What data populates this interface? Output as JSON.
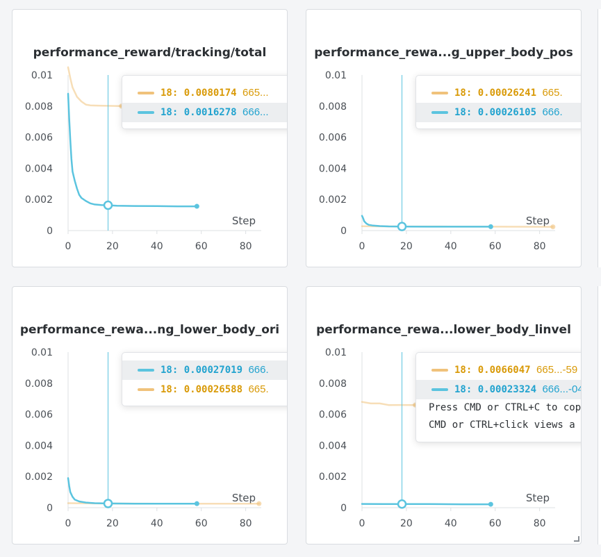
{
  "colors": {
    "blue": "#5bc4df",
    "blue_text": "#22a3cf",
    "orange": "#f0c27b",
    "orange_text": "#d99a08"
  },
  "x_axis_label": "Step",
  "chart_data": [
    {
      "type": "line",
      "title": "performance_reward/tracking/total",
      "xlabel": "Step",
      "xlim": [
        0,
        87
      ],
      "ylim": [
        0,
        0.01
      ],
      "x_ticks": [
        "0",
        "20",
        "40",
        "60",
        "80"
      ],
      "y_ticks": [
        "0",
        "0.002",
        "0.004",
        "0.006",
        "0.008",
        "0.01"
      ],
      "hover_step": 18,
      "series": [
        {
          "color": "#f0c27b",
          "faded": true,
          "x": [
            0,
            1,
            2,
            4,
            6,
            8,
            10,
            14,
            18,
            24
          ],
          "y": [
            0.0105,
            0.0098,
            0.0092,
            0.0086,
            0.0083,
            0.0081,
            0.00805,
            0.00803,
            0.0080174,
            0.008
          ]
        },
        {
          "color": "#5bc4df",
          "faded": false,
          "x": [
            0,
            0.5,
            1,
            1.5,
            2,
            3,
            4,
            5,
            6,
            8,
            10,
            12,
            15,
            18,
            22,
            30,
            40,
            50,
            58
          ],
          "y": [
            0.0088,
            0.0072,
            0.0058,
            0.0046,
            0.0038,
            0.0032,
            0.0027,
            0.0023,
            0.0021,
            0.0019,
            0.00175,
            0.00168,
            0.00164,
            0.0016278,
            0.0016,
            0.00158,
            0.00157,
            0.00156,
            0.00156
          ]
        }
      ],
      "tooltip": {
        "rows": [
          {
            "color": "#f0c27b",
            "text_color": "#d99a08",
            "step": "18:",
            "value": "0.0080174",
            "name": "665...",
            "highlight": false
          },
          {
            "color": "#5bc4df",
            "text_color": "#22a3cf",
            "step": "18:",
            "value": "0.0016278",
            "name": "666...",
            "highlight": true
          }
        ],
        "hints": []
      }
    },
    {
      "type": "line",
      "title": "performance_rewa...g_upper_body_pos",
      "xlabel": "Step",
      "xlim": [
        0,
        87
      ],
      "ylim": [
        0,
        0.01
      ],
      "x_ticks": [
        "0",
        "20",
        "40",
        "60",
        "80"
      ],
      "y_ticks": [
        "0",
        "0.002",
        "0.004",
        "0.006",
        "0.008",
        "0.01"
      ],
      "hover_step": 18,
      "series": [
        {
          "color": "#f0c27b",
          "faded": true,
          "x": [
            0,
            18,
            40,
            60,
            86
          ],
          "y": [
            0.00028,
            0.00026241,
            0.00026,
            0.00025,
            0.00024
          ]
        },
        {
          "color": "#5bc4df",
          "faded": false,
          "x": [
            0,
            0.5,
            1,
            2,
            3,
            5,
            8,
            12,
            18,
            30,
            45,
            58
          ],
          "y": [
            0.00095,
            0.0008,
            0.0006,
            0.00045,
            0.00037,
            0.00032,
            0.00029,
            0.00027,
            0.00026105,
            0.00025,
            0.00025,
            0.00025
          ]
        }
      ],
      "tooltip": {
        "rows": [
          {
            "color": "#f0c27b",
            "text_color": "#d99a08",
            "step": "18:",
            "value": "0.00026241",
            "name": "665.",
            "highlight": false
          },
          {
            "color": "#5bc4df",
            "text_color": "#22a3cf",
            "step": "18:",
            "value": "0.00026105",
            "name": "666.",
            "highlight": true
          }
        ],
        "hints": []
      }
    },
    {
      "type": "line",
      "title": "performance_rewa...ng_lower_body_ori",
      "xlabel": "Step",
      "xlim": [
        0,
        87
      ],
      "ylim": [
        0,
        0.01
      ],
      "x_ticks": [
        "0",
        "20",
        "40",
        "60",
        "80"
      ],
      "y_ticks": [
        "0",
        "0.002",
        "0.004",
        "0.006",
        "0.008",
        "0.01"
      ],
      "hover_step": 18,
      "series": [
        {
          "color": "#f0c27b",
          "faded": true,
          "x": [
            0,
            18,
            40,
            60,
            86
          ],
          "y": [
            0.00029,
            0.00026588,
            0.00026,
            0.00026,
            0.00026
          ]
        },
        {
          "color": "#5bc4df",
          "faded": false,
          "x": [
            0,
            0.5,
            1,
            2,
            3,
            5,
            8,
            12,
            18,
            30,
            45,
            58
          ],
          "y": [
            0.0019,
            0.0014,
            0.001,
            0.0007,
            0.00052,
            0.0004,
            0.00033,
            0.00029,
            0.00027019,
            0.00026,
            0.00026,
            0.00026
          ]
        }
      ],
      "tooltip": {
        "rows": [
          {
            "color": "#5bc4df",
            "text_color": "#22a3cf",
            "step": "18:",
            "value": "0.00027019",
            "name": "666.",
            "highlight": true
          },
          {
            "color": "#f0c27b",
            "text_color": "#d99a08",
            "step": "18:",
            "value": "0.00026588",
            "name": "665.",
            "highlight": false
          }
        ],
        "hints": []
      }
    },
    {
      "type": "line",
      "title": "performance_rewa...lower_body_linvel",
      "xlabel": "Step",
      "xlim": [
        0,
        87
      ],
      "ylim": [
        0,
        0.01
      ],
      "x_ticks": [
        "0",
        "20",
        "40",
        "60",
        "80"
      ],
      "y_ticks": [
        "0",
        "0.002",
        "0.004",
        "0.006",
        "0.008",
        "0.01"
      ],
      "hover_step": 18,
      "series": [
        {
          "color": "#f0c27b",
          "faded": true,
          "x": [
            0,
            4,
            8,
            12,
            18,
            24
          ],
          "y": [
            0.0068,
            0.0067,
            0.0067,
            0.0066,
            0.0066047,
            0.0066
          ]
        },
        {
          "color": "#5bc4df",
          "faded": false,
          "x": [
            0,
            10,
            18,
            30,
            45,
            58
          ],
          "y": [
            0.00024,
            0.00023,
            0.00023324,
            0.00023,
            0.00022,
            0.00022
          ]
        }
      ],
      "tooltip": {
        "rows": [
          {
            "color": "#f0c27b",
            "text_color": "#d99a08",
            "step": "18:",
            "value": "0.0066047",
            "name": "665...-59",
            "highlight": false
          },
          {
            "color": "#5bc4df",
            "text_color": "#22a3cf",
            "step": "18:",
            "value": "0.00023324",
            "name": "666...-04",
            "highlight": true
          }
        ],
        "hints": [
          "Press CMD or CTRL+C to copy",
          "CMD or CTRL+click views a ru"
        ]
      }
    }
  ]
}
